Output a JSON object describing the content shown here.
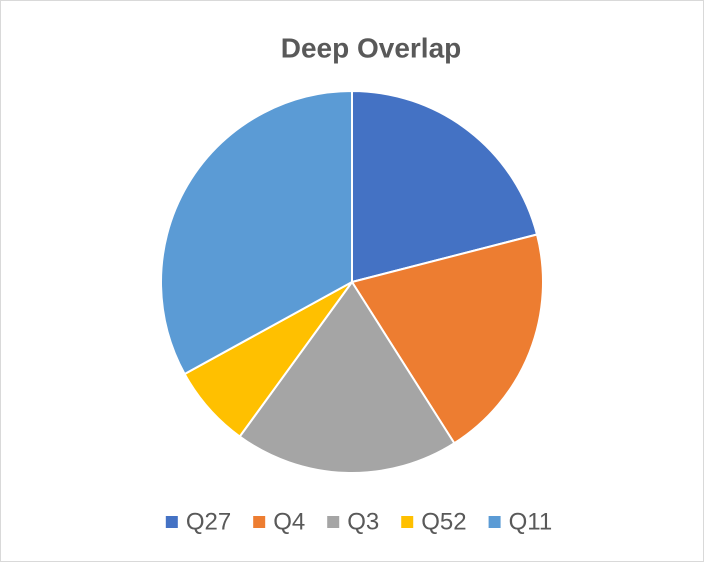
{
  "chart_data": {
    "type": "pie",
    "title": "Deep Overlap",
    "categories": [
      "Q27",
      "Q4",
      "Q3",
      "Q52",
      "Q11"
    ],
    "values": [
      21,
      20,
      19,
      7,
      33
    ],
    "colors": [
      "#4472c4",
      "#ed7d31",
      "#a5a5a5",
      "#ffc000",
      "#5b9bd5"
    ],
    "legend": "bottom"
  }
}
